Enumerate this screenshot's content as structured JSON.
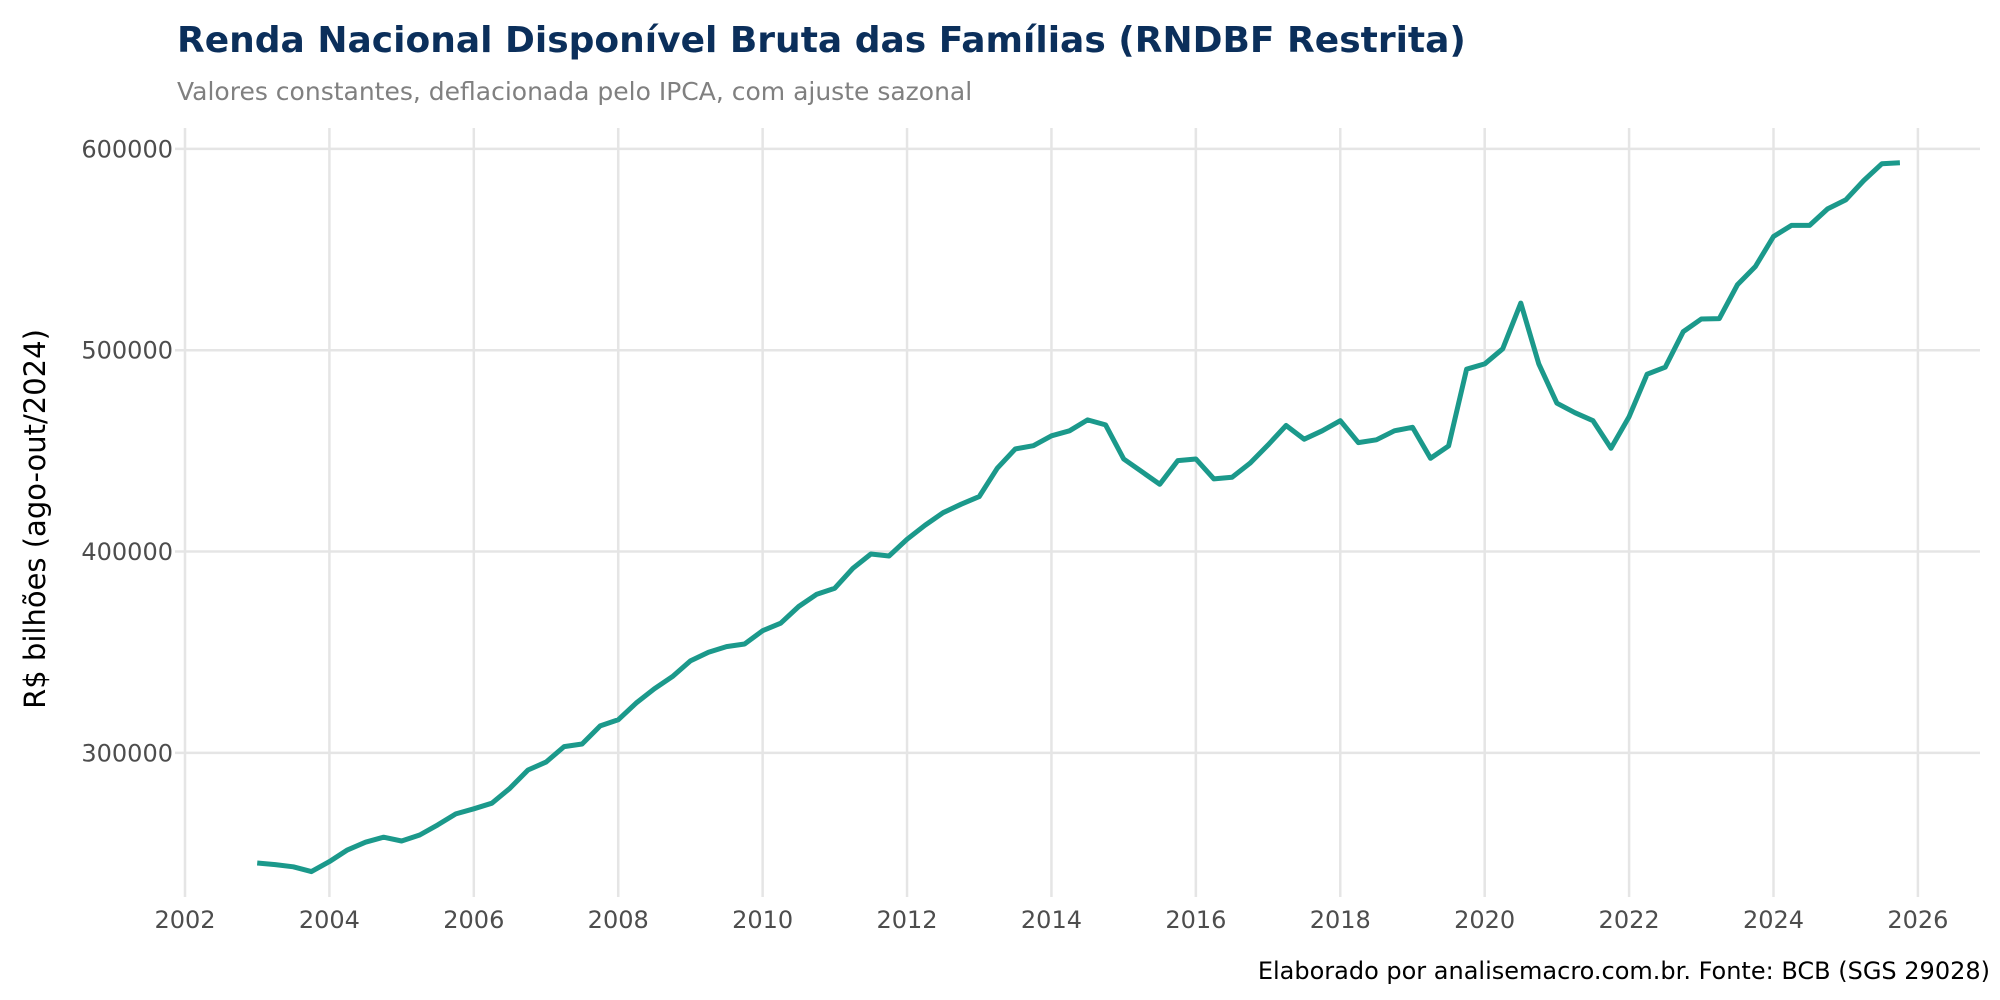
{
  "chart_data": {
    "type": "line",
    "title": "Renda Nacional Disponível Bruta das Famílias (RNDBF Restrita)",
    "subtitle": "Valores constantes, deflacionada pelo IPCA, com ajuste sazonal",
    "xlabel": "",
    "ylabel": "R$ bilhões (ago-out/2024)",
    "caption": "Elaborado por analisemacro.com.br. Fonte: BCB (SGS 29028)",
    "xlim": [
      2002,
      2026.86
    ],
    "ylim": [
      228400,
      610400
    ],
    "grid": true,
    "legend": "none",
    "x_ticks": [
      {
        "value": 2002,
        "label": "2002"
      },
      {
        "value": 2004,
        "label": "2004"
      },
      {
        "value": 2006,
        "label": "2006"
      },
      {
        "value": 2008,
        "label": "2008"
      },
      {
        "value": 2010,
        "label": "2010"
      },
      {
        "value": 2012,
        "label": "2012"
      },
      {
        "value": 2014,
        "label": "2014"
      },
      {
        "value": 2016,
        "label": "2016"
      },
      {
        "value": 2018,
        "label": "2018"
      },
      {
        "value": 2020,
        "label": "2020"
      },
      {
        "value": 2022,
        "label": "2022"
      },
      {
        "value": 2024,
        "label": "2024"
      },
      {
        "value": 2026,
        "label": "2026"
      }
    ],
    "y_ticks": [
      {
        "value": 300000,
        "label": "300000"
      },
      {
        "value": 400000,
        "label": "400000"
      },
      {
        "value": 500000,
        "label": "500000"
      },
      {
        "value": 600000,
        "label": "600000"
      }
    ],
    "series": [
      {
        "name": "RNDBF Restrita",
        "color": "#1B998B",
        "x_start": 2003,
        "x_step": 0.25,
        "values": [
          245300,
          244500,
          243400,
          241000,
          246000,
          251800,
          255600,
          258100,
          256200,
          259200,
          264200,
          269700,
          272200,
          275000,
          282400,
          291500,
          295400,
          303100,
          304400,
          313400,
          316400,
          324800,
          331800,
          337900,
          345700,
          350000,
          352800,
          354100,
          360700,
          364400,
          372700,
          378800,
          381800,
          391700,
          398800,
          397800,
          406100,
          413100,
          419300,
          423500,
          427300,
          441400,
          451000,
          452600,
          457500,
          460000,
          465400,
          462900,
          446000,
          439700,
          433400,
          445200,
          446000,
          436100,
          436900,
          443900,
          453000,
          462600,
          455800,
          460000,
          465000,
          454100,
          455500,
          460000,
          461700,
          446300,
          452500,
          490600,
          493200,
          500700,
          523400,
          493200,
          473700,
          469000,
          465000,
          451300,
          467000,
          488100,
          491600,
          509200,
          515500,
          515700,
          532500,
          541600,
          556500,
          562000,
          562000,
          570200,
          574700,
          584300,
          592600,
          593100
        ]
      }
    ]
  }
}
